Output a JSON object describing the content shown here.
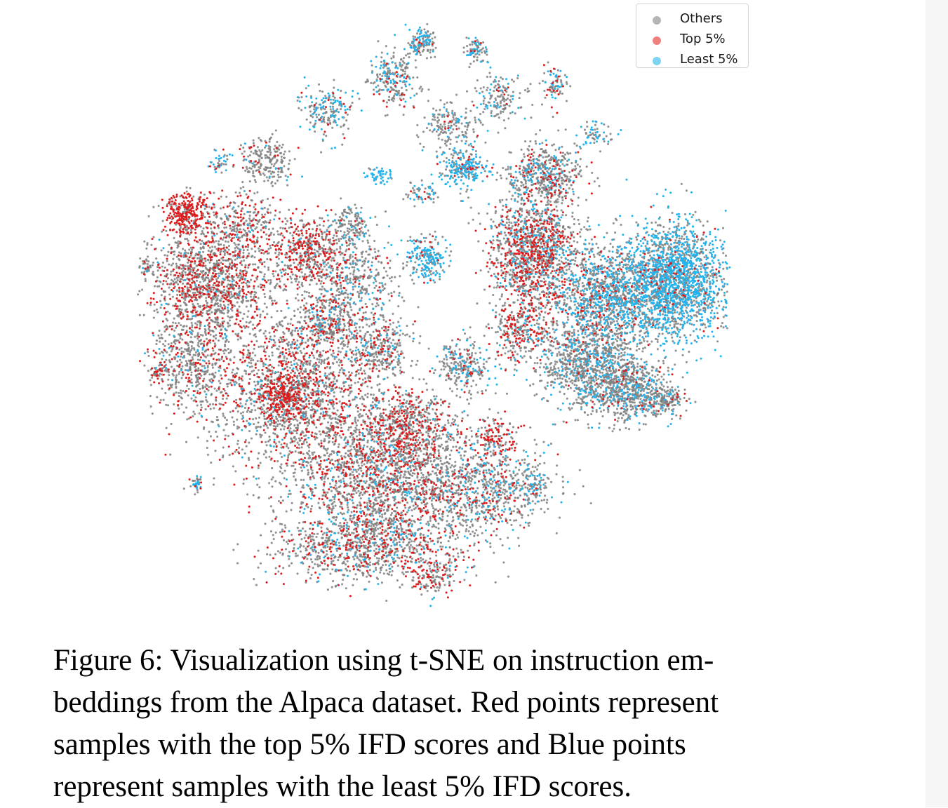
{
  "chart_data": {
    "type": "scatter",
    "method": "t-SNE",
    "axes_visible": false,
    "grid": false,
    "legend_position": "top-right",
    "legend": [
      {
        "name": "Others",
        "color": "#7f7f7f",
        "legend_color": "#b5b5b5"
      },
      {
        "name": "Top 5%",
        "color": "#e01b1b",
        "legend_color": "#f08080"
      },
      {
        "name": "Least 5%",
        "color": "#22b4ee",
        "legend_color": "#7fd3f2"
      }
    ]
  },
  "caption": {
    "lines": [
      "Figure 6: Visualization using t-SNE on instruction em-",
      "beddings from the Alpaca dataset. Red points represent",
      "samples with the top 5% IFD scores and Blue points",
      "represent samples with the least 5% IFD scores."
    ]
  }
}
